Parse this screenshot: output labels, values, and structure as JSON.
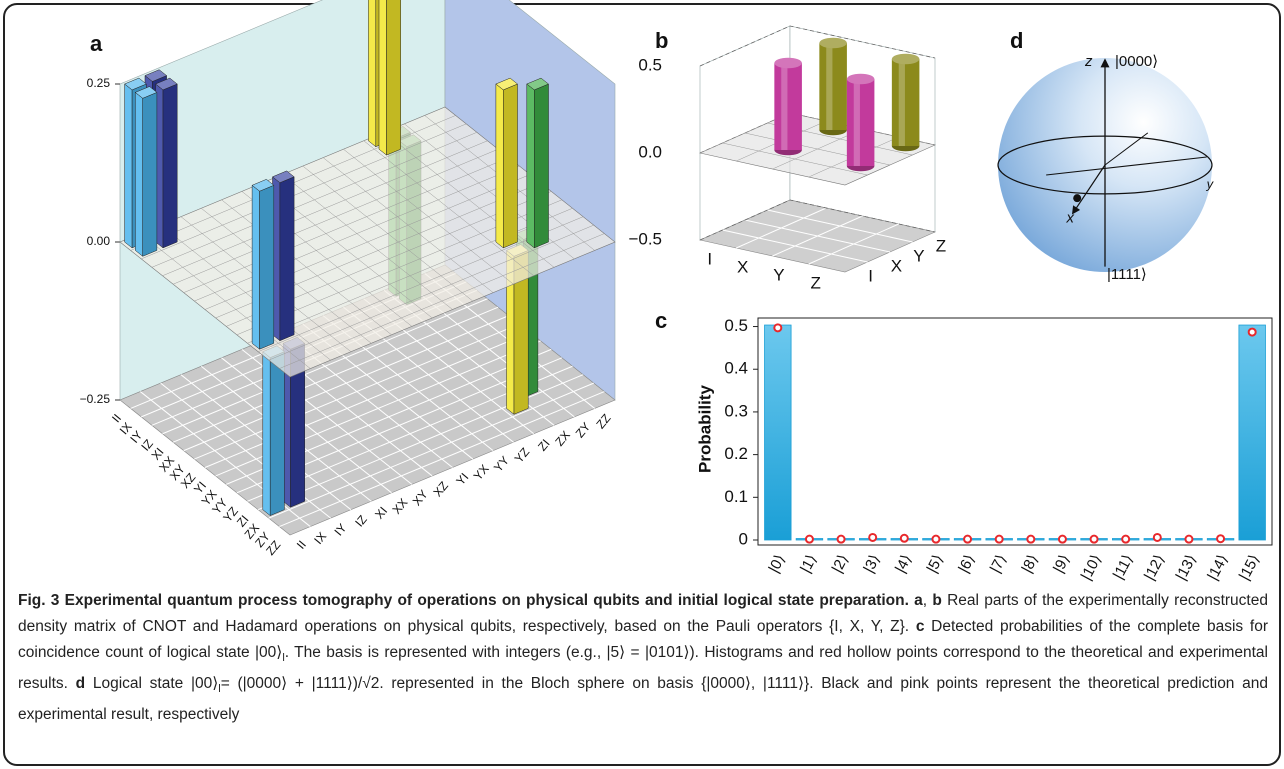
{
  "chart_data": [
    {
      "type": "bar3d",
      "label": "a",
      "categories": [
        "II",
        "IX",
        "IY",
        "IZ",
        "XI",
        "XX",
        "XY",
        "XZ",
        "YI",
        "YX",
        "YY",
        "YZ",
        "ZI",
        "ZX",
        "ZY",
        "ZZ"
      ],
      "zlim": [
        -0.25,
        0.25
      ],
      "zticks": [
        0.25,
        {
          "value": 0,
          "label": "0.00"
        },
        {
          "value": -0.25,
          "label": "−0.25"
        }
      ],
      "bars": [
        {
          "row": 0,
          "col": 0,
          "value": 0.25,
          "color": "#4ab4ec"
        },
        {
          "row": 0,
          "col": 1,
          "value": 0.25,
          "color": "#2f3c9e"
        },
        {
          "row": 0,
          "col": 12,
          "value": 0.25,
          "color": "#f2e62a"
        },
        {
          "row": 0,
          "col": 13,
          "value": -0.25,
          "color": "#3fae48"
        },
        {
          "row": 1,
          "col": 0,
          "value": 0.25,
          "color": "#4ab4ec"
        },
        {
          "row": 1,
          "col": 1,
          "value": 0.25,
          "color": "#2f3c9e"
        },
        {
          "row": 1,
          "col": 12,
          "value": 0.25,
          "color": "#f2e62a"
        },
        {
          "row": 1,
          "col": 13,
          "value": -0.25,
          "color": "#3fae48"
        },
        {
          "row": 12,
          "col": 0,
          "value": 0.25,
          "color": "#4ab4ec"
        },
        {
          "row": 12,
          "col": 1,
          "value": 0.25,
          "color": "#2f3c9e"
        },
        {
          "row": 12,
          "col": 12,
          "value": 0.25,
          "color": "#f2e62a"
        },
        {
          "row": 12,
          "col": 13,
          "value": -0.25,
          "color": "#3fae48"
        },
        {
          "row": 13,
          "col": 0,
          "value": -0.25,
          "color": "#4ab4ec"
        },
        {
          "row": 13,
          "col": 1,
          "value": -0.25,
          "color": "#2f3c9e"
        },
        {
          "row": 13,
          "col": 12,
          "value": -0.25,
          "color": "#f2e62a"
        },
        {
          "row": 13,
          "col": 13,
          "value": 0.25,
          "color": "#3fae48"
        }
      ]
    },
    {
      "type": "cyl3d",
      "label": "b",
      "categories": [
        "I",
        "X",
        "Y",
        "Z"
      ],
      "zlim": [
        -0.5,
        0.5
      ],
      "zticks": [
        0.5,
        {
          "value": 0,
          "label": "0.0"
        },
        {
          "value": -0.5,
          "label": "−0.5"
        }
      ],
      "bars": [
        {
          "row": 1,
          "col": 1,
          "value": 0.5,
          "color": "#c23a9c"
        },
        {
          "row": 1,
          "col": 3,
          "value": 0.5,
          "color": "#8c8a1c"
        },
        {
          "row": 3,
          "col": 1,
          "value": 0.5,
          "color": "#c23a9c"
        },
        {
          "row": 3,
          "col": 3,
          "value": 0.5,
          "color": "#8c8a1c"
        }
      ]
    },
    {
      "type": "bar",
      "label": "c",
      "ylabel": "Probability",
      "categories": [
        "|0⟩",
        "|1⟩",
        "|2⟩",
        "|3⟩",
        "|4⟩",
        "|5⟩",
        "|6⟩",
        "|7⟩",
        "|8⟩",
        "|9⟩",
        "|10⟩",
        "|11⟩",
        "|12⟩",
        "|13⟩",
        "|14⟩",
        "|15⟩"
      ],
      "ylim": [
        0,
        0.52
      ],
      "yticks": [
        0,
        0.1,
        0.2,
        0.3,
        0.4,
        0.5
      ],
      "series": [
        {
          "color": "#1a9fd6",
          "values": [
            0.5,
            0,
            0,
            0,
            0,
            0,
            0,
            0,
            0,
            0,
            0,
            0,
            0,
            0,
            0,
            0.5
          ]
        },
        {
          "color": "#e8282c",
          "marker": "hollow",
          "values": [
            0.497,
            0.002,
            0.002,
            0.006,
            0.004,
            0.002,
            0.002,
            0.002,
            0.002,
            0.002,
            0.002,
            0.002,
            0.006,
            0.002,
            0.003,
            0.487
          ]
        }
      ]
    },
    {
      "type": "bloch",
      "label": "d",
      "axes": {
        "z": "z",
        "y": "y",
        "x": "x"
      },
      "north": "|0000⟩",
      "south": "|1111⟩"
    }
  ],
  "caption": {
    "runs": [
      {
        "text": "Fig. 3 Experimental quantum process tomography of operations on physical qubits and initial logical state preparation. ",
        "bold": true
      },
      {
        "text": "a",
        "bold": true
      },
      {
        "text": ", "
      },
      {
        "text": "b",
        "bold": true
      },
      {
        "text": " Real parts of the experimentally reconstructed density matrix of CNOT and Hadamard operations on physical qubits, respectively, based on the Pauli operators {I, X, Y, Z}. "
      },
      {
        "text": "c",
        "bold": true
      },
      {
        "text": " Detected probabilities of the complete basis for coincidence count of logical state |00⟩"
      },
      {
        "text": "l",
        "sub": true
      },
      {
        "text": ". The basis is represented with integers (e.g., |5⟩ = |0101⟩). Histograms and red hollow points correspond to the theoretical and experimental results. "
      },
      {
        "text": "d",
        "bold": true
      },
      {
        "text": " Logical state |00⟩"
      },
      {
        "text": "l",
        "sub": true
      },
      {
        "text": "= (|0000⟩ + |1111⟩)/√2. represented in the Bloch sphere on basis {|0000⟩, |1111⟩}. Black and pink points represent the theoretical prediction and experimental result, respectively"
      }
    ]
  }
}
